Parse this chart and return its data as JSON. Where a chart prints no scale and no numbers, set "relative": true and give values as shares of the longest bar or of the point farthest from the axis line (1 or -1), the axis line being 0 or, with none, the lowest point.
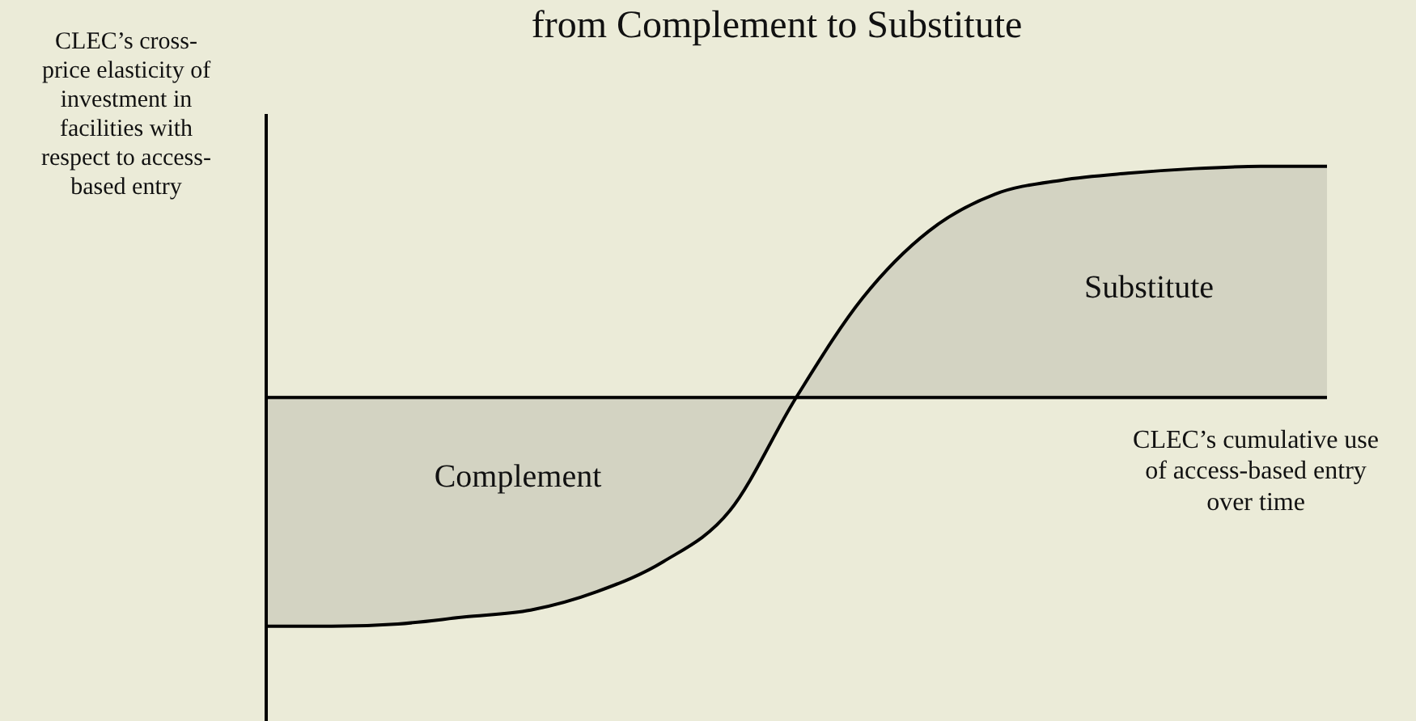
{
  "chart_data": {
    "type": "area",
    "relative": true,
    "title": "from Complement to Substitute",
    "ylabel": "CLEC’s cross-\nprice elasticity of\ninvestment in\nfacilities with\nrespect to access-\nbased entry",
    "xlabel": "CLEC’s cumulative use\nof access-based entry\nover time",
    "annotations": [
      "Complement",
      "Substitute"
    ],
    "categories": [
      null,
      null,
      null,
      null,
      null,
      null,
      null,
      null,
      null,
      null,
      null,
      null,
      null,
      null,
      null,
      null,
      null
    ],
    "series": [
      {
        "color": "#000000",
        "values": [
          -0.99,
          -0.99,
          -0.98,
          -0.95,
          -0.92,
          -0.84,
          -0.71,
          -0.49,
          0.0,
          0.43,
          0.72,
          0.88,
          0.94,
          0.97,
          0.99,
          1.0,
          1.0
        ]
      }
    ]
  }
}
